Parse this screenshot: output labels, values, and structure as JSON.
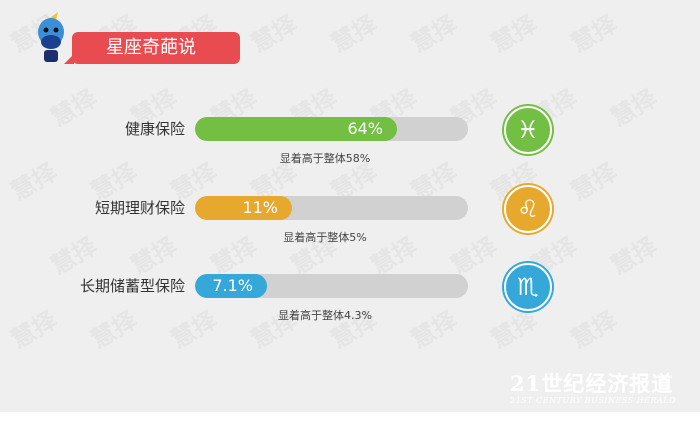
{
  "banner": {
    "title": "星座奇葩说"
  },
  "chart_data": {
    "type": "bar",
    "categories": [
      "健康保险",
      "短期理财保险",
      "长期储蓄型保险"
    ],
    "values": [
      64,
      11,
      7.1
    ],
    "value_labels": [
      "64%",
      "11%",
      "7.1%"
    ],
    "notes": [
      "显着高于整体58%",
      "显着高于整体5%",
      "显着高于整体4.3%"
    ],
    "colors": [
      "#72bf44",
      "#e6a92e",
      "#35a7d8"
    ],
    "icons": [
      "pisces-icon",
      "leo-icon",
      "scorpio-icon"
    ],
    "ylim": [
      0,
      100
    ]
  },
  "brand": {
    "cn": "21世纪经济报道",
    "en": "21ST CENTURY BUSINESS HERALD"
  },
  "watermark": "慧择"
}
